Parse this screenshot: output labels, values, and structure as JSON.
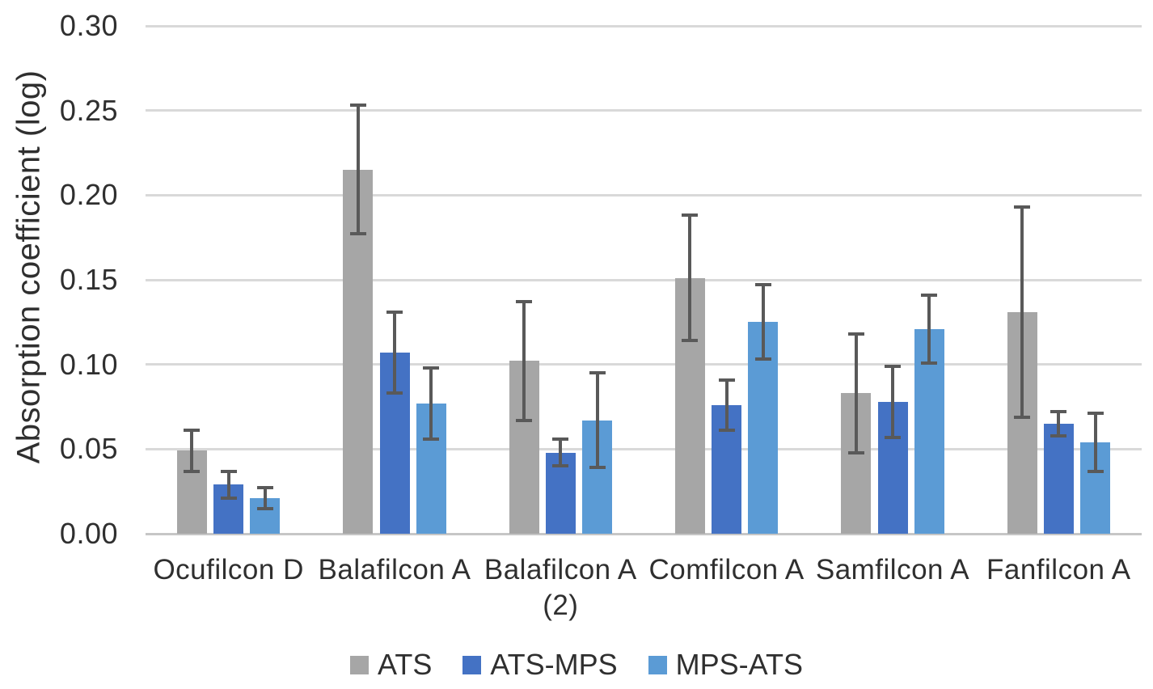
{
  "chart_data": {
    "type": "bar",
    "title": "",
    "xlabel": "",
    "ylabel": "Absorption coefficient (log)",
    "ylim": [
      0,
      0.3
    ],
    "ytick_step": 0.05,
    "ytick_labels": [
      "0.00",
      "0.05",
      "0.10",
      "0.15",
      "0.20",
      "0.25",
      "0.30"
    ],
    "grid": true,
    "legend_position": "bottom",
    "categories": [
      "Ocufilcon D",
      "Balafilcon A",
      "Balafilcon A",
      "Comfilcon A",
      "Samfilcon A",
      "Fanfilcon A"
    ],
    "category_sublabels": [
      "",
      "",
      "(2)",
      "",
      "",
      ""
    ],
    "series": [
      {
        "name": "ATS",
        "color": "#a6a6a6",
        "values": [
          0.049,
          0.215,
          0.102,
          0.151,
          0.083,
          0.131
        ],
        "errors": [
          0.012,
          0.038,
          0.035,
          0.037,
          0.035,
          0.062
        ]
      },
      {
        "name": "ATS-MPS",
        "color": "#4472c4",
        "values": [
          0.029,
          0.107,
          0.048,
          0.076,
          0.078,
          0.065
        ],
        "errors": [
          0.008,
          0.024,
          0.008,
          0.015,
          0.021,
          0.007
        ]
      },
      {
        "name": "MPS-ATS",
        "color": "#5b9bd5",
        "values": [
          0.021,
          0.077,
          0.067,
          0.125,
          0.121,
          0.054
        ],
        "errors": [
          0.006,
          0.021,
          0.028,
          0.022,
          0.02,
          0.017
        ]
      }
    ],
    "style_colors": {
      "background": "#ffffff",
      "text": "#2f2f2f",
      "gridline": "#d9d9d9",
      "baseline": "#c6c6c6",
      "error_bar": "#595959"
    }
  }
}
